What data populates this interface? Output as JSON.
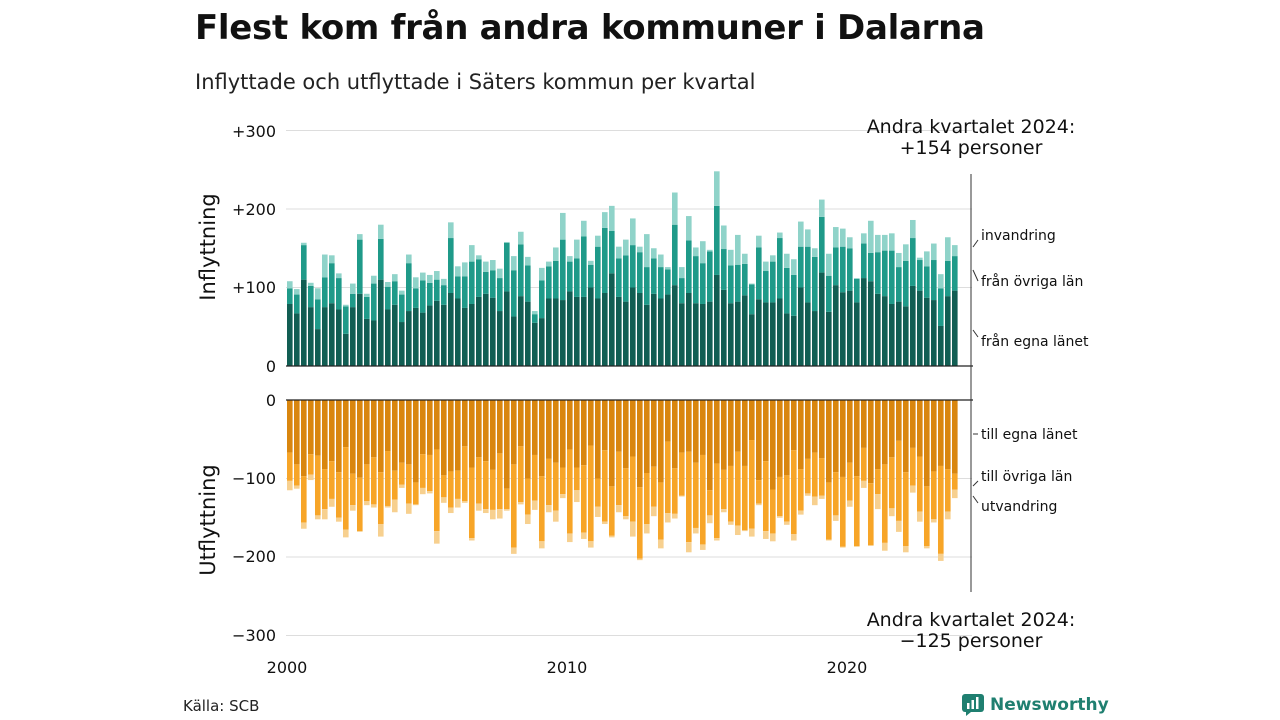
{
  "title": "Flest kom från andra kommuner i Dalarna",
  "subtitle": "Inflyttade och utflyttade i Säters kommun per kvartal",
  "source": "Källa: SCB",
  "brand": "Newsworthy",
  "chart_data": {
    "type": "bar",
    "stacked": true,
    "x_start": "2000 Q1",
    "x_end": "2024 Q2",
    "x_ticks": [
      "2000",
      "2010",
      "2020"
    ],
    "ylabel_top": "Inflyttning",
    "ylabel_bottom": "Utflyttning",
    "ylim": [
      -300,
      300
    ],
    "y_ticks_top": [
      "+300",
      "+200",
      "+100",
      "0"
    ],
    "y_ticks_bottom": [
      "0",
      "−100",
      "−200",
      "−300"
    ],
    "annotation_top": {
      "line1": "Andra kvartalet 2024:",
      "line2": "+154 personer"
    },
    "annotation_bottom": {
      "line1": "Andra kvartalet 2024:",
      "line2": "−125 personer"
    },
    "colors": {
      "in_egna": "#115e53",
      "in_ovriga": "#1f9a89",
      "in_invandring": "#8fd3c9",
      "out_egna": "#d9860f",
      "out_ovriga": "#f7a528",
      "out_utvandring": "#f7d08f",
      "grid": "#dddddd"
    },
    "series_labels": {
      "in_egna": "från egna länet",
      "in_ovriga": "från övriga län",
      "in_invandring": "invandring",
      "out_egna": "till egna länet",
      "out_ovriga": "till övriga län",
      "out_utvandring": "utvandring"
    },
    "inflyttning": {
      "from_egna_lanet": [
        79,
        67,
        110,
        75,
        47,
        75,
        80,
        72,
        41,
        75,
        92,
        60,
        58,
        110,
        72,
        78,
        56,
        70,
        74,
        68,
        77,
        83,
        78,
        93,
        86,
        74,
        79,
        88,
        92,
        87,
        70,
        95,
        63,
        89,
        82,
        55,
        61,
        86,
        86,
        84,
        95,
        88,
        88,
        100,
        86,
        93,
        118,
        88,
        82,
        100,
        93,
        78,
        92,
        86,
        91,
        103,
        80,
        93,
        80,
        79,
        82,
        116,
        97,
        80,
        82,
        90,
        66,
        85,
        81,
        81,
        86,
        67,
        64,
        100,
        81,
        70,
        119,
        69,
        103,
        94,
        96,
        81,
        112,
        108,
        92,
        89,
        79,
        82,
        76,
        102,
        96,
        87,
        84,
        51,
        89,
        96
      ],
      "from_ovriga_lan": [
        20,
        24,
        44,
        27,
        38,
        38,
        51,
        40,
        35,
        17,
        69,
        28,
        47,
        52,
        29,
        30,
        35,
        61,
        25,
        41,
        29,
        27,
        25,
        70,
        28,
        40,
        54,
        48,
        28,
        35,
        42,
        62,
        59,
        66,
        46,
        11,
        48,
        41,
        48,
        77,
        38,
        49,
        77,
        29,
        66,
        83,
        54,
        49,
        59,
        54,
        52,
        48,
        45,
        40,
        32,
        77,
        32,
        67,
        60,
        52,
        64,
        88,
        52,
        48,
        47,
        40,
        38,
        66,
        40,
        52,
        77,
        58,
        52,
        52,
        71,
        69,
        71,
        46,
        48,
        58,
        54,
        30,
        44,
        36,
        53,
        58,
        68,
        44,
        58,
        61,
        39,
        40,
        51,
        48,
        45,
        44
      ],
      "invandring": [
        9,
        7,
        3,
        4,
        14,
        29,
        10,
        6,
        2,
        13,
        7,
        4,
        10,
        18,
        6,
        9,
        5,
        11,
        14,
        10,
        10,
        11,
        8,
        20,
        13,
        18,
        21,
        5,
        13,
        13,
        12,
        1,
        18,
        16,
        11,
        4,
        16,
        6,
        17,
        34,
        7,
        24,
        20,
        5,
        14,
        20,
        32,
        15,
        20,
        34,
        7,
        42,
        13,
        16,
        3,
        41,
        14,
        31,
        11,
        28,
        2,
        44,
        30,
        20,
        38,
        13,
        1,
        15,
        12,
        8,
        7,
        18,
        20,
        32,
        22,
        11,
        22,
        28,
        26,
        23,
        14,
        1,
        13,
        41,
        22,
        20,
        22,
        18,
        21,
        23,
        3,
        19,
        21,
        18,
        30,
        14
      ]
    },
    "utflyttning": {
      "till_egna_lanet": [
        67,
        82,
        97,
        69,
        71,
        88,
        78,
        92,
        60,
        94,
        99,
        82,
        73,
        92,
        65,
        90,
        80,
        82,
        105,
        69,
        70,
        63,
        96,
        91,
        90,
        59,
        86,
        73,
        78,
        89,
        68,
        113,
        82,
        59,
        100,
        70,
        97,
        75,
        80,
        86,
        63,
        86,
        83,
        58,
        100,
        64,
        110,
        66,
        87,
        72,
        111,
        93,
        85,
        105,
        53,
        87,
        67,
        66,
        80,
        70,
        115,
        81,
        89,
        84,
        66,
        84,
        51,
        102,
        78,
        114,
        98,
        96,
        64,
        88,
        75,
        67,
        74,
        105,
        92,
        98,
        80,
        97,
        61,
        106,
        88,
        82,
        73,
        52,
        92,
        61,
        72,
        110,
        91,
        84,
        88,
        94
      ],
      "till_ovriga_lan": [
        36,
        27,
        59,
        26,
        76,
        51,
        48,
        58,
        105,
        40,
        68,
        47,
        60,
        66,
        70,
        37,
        28,
        50,
        28,
        43,
        46,
        104,
        28,
        46,
        36,
        70,
        90,
        59,
        61,
        51,
        71,
        26,
        106,
        71,
        46,
        58,
        83,
        59,
        61,
        34,
        107,
        29,
        86,
        122,
        36,
        91,
        63,
        68,
        61,
        83,
        91,
        65,
        51,
        73,
        91,
        58,
        55,
        115,
        83,
        114,
        32,
        95,
        50,
        71,
        94,
        82,
        113,
        30,
        89,
        56,
        50,
        59,
        107,
        53,
        44,
        56,
        48,
        73,
        55,
        89,
        48,
        89,
        42,
        79,
        32,
        100,
        65,
        102,
        94,
        48,
        70,
        76,
        61,
        112,
        54,
        20
      ],
      "utvandring": [
        12,
        4,
        8,
        7,
        5,
        13,
        10,
        5,
        10,
        7,
        1,
        5,
        4,
        16,
        2,
        16,
        4,
        13,
        1,
        8,
        3,
        16,
        7,
        7,
        11,
        2,
        3,
        9,
        5,
        12,
        12,
        2,
        8,
        3,
        12,
        12,
        9,
        9,
        14,
        5,
        11,
        15,
        8,
        8,
        13,
        3,
        2,
        9,
        4,
        19,
        2,
        12,
        12,
        11,
        12,
        6,
        1,
        13,
        7,
        7,
        10,
        3,
        4,
        4,
        12,
        1,
        10,
        2,
        10,
        10,
        2,
        4,
        8,
        5,
        3,
        11,
        4,
        1,
        7,
        1,
        8,
        1,
        9,
        1,
        19,
        10,
        10,
        14,
        8,
        9,
        13,
        3,
        4,
        9,
        10,
        11
      ]
    }
  }
}
